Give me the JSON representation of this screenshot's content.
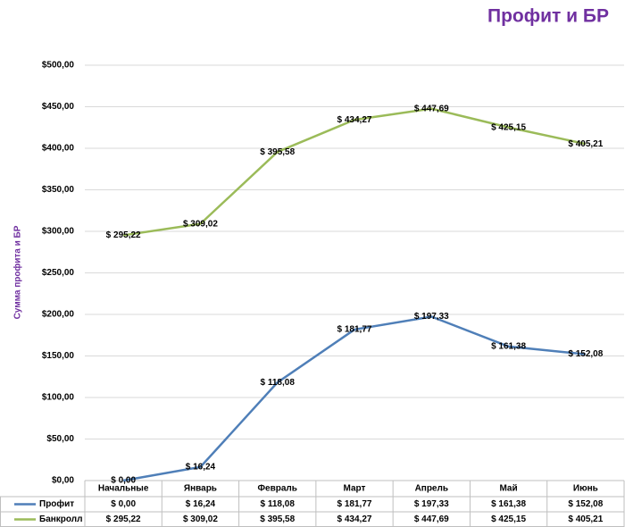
{
  "chart_data": {
    "type": "line",
    "title": "Профит и БР",
    "y_label": "Сумма профита и БР",
    "categories": [
      "Начальные",
      "Январь",
      "Февраль",
      "Март",
      "Апрель",
      "Май",
      "Июнь"
    ],
    "series": [
      {
        "name": "Профит",
        "color": "#4f7fb8",
        "values": [
          0,
          16.24,
          118.08,
          181.77,
          197.33,
          161.38,
          152.08
        ],
        "value_labels": [
          "$ 0,00",
          "$ 16,24",
          "$ 118,08",
          "$ 181,77",
          "$ 197,33",
          "$ 161,38",
          "$ 152,08"
        ]
      },
      {
        "name": "Банкролл",
        "color": "#9bbb59",
        "values": [
          295.22,
          309.02,
          395.58,
          434.27,
          447.69,
          425.15,
          405.21
        ],
        "value_labels": [
          "$ 295,22",
          "$ 309,02",
          "$ 395,58",
          "$ 434,27",
          "$ 447,69",
          "$ 425,15",
          "$ 405,21"
        ]
      }
    ],
    "ylim": [
      0,
      500
    ],
    "yticks": [
      {
        "value": 0,
        "label": "$0,00"
      },
      {
        "value": 50,
        "label": "$50,00"
      },
      {
        "value": 100,
        "label": "$100,00"
      },
      {
        "value": 150,
        "label": "$150,00"
      },
      {
        "value": 200,
        "label": "$200,00"
      },
      {
        "value": 250,
        "label": "$250,00"
      },
      {
        "value": 300,
        "label": "$300,00"
      },
      {
        "value": 350,
        "label": "$350,00"
      },
      {
        "value": 400,
        "label": "$400,00"
      },
      {
        "value": 450,
        "label": "$450,00"
      },
      {
        "value": 500,
        "label": "$500,00"
      }
    ],
    "grid": true
  }
}
